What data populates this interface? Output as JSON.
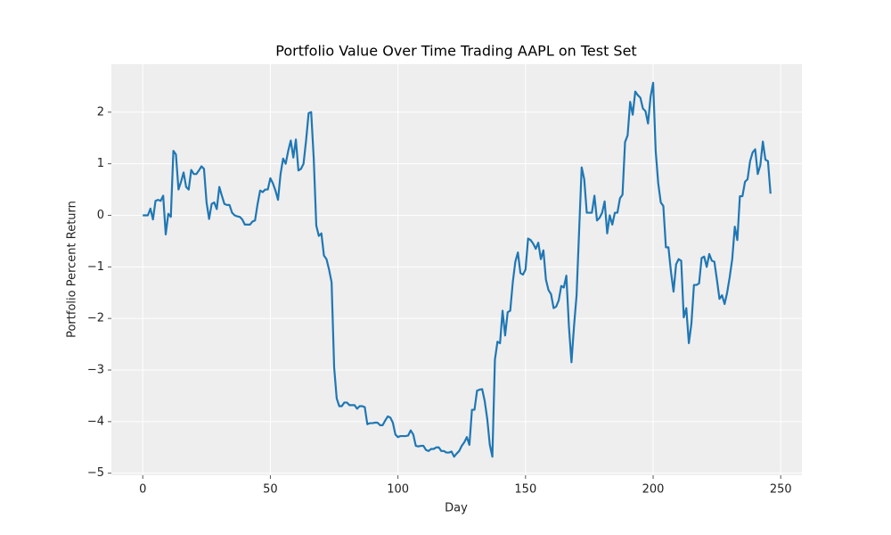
{
  "chart_data": {
    "type": "line",
    "title": "Portfolio Value Over Time Trading AAPL on Test Set",
    "x_label": "Day",
    "y_label": "Portfolio Percent Return",
    "color": "#1f77b4",
    "grid": true,
    "xlim": [
      -12.3,
      258.3
    ],
    "ylim": [
      -5.04,
      2.93
    ],
    "xticks": [
      0,
      50,
      100,
      150,
      200,
      250
    ],
    "yticks": [
      {
        "value": -5,
        "label": "−5"
      },
      {
        "value": -4,
        "label": "−4"
      },
      {
        "value": -3,
        "label": "−3"
      },
      {
        "value": -2,
        "label": "−2"
      },
      {
        "value": -1,
        "label": "−1"
      },
      0,
      1,
      2
    ],
    "x": [
      0,
      1,
      2,
      3,
      4,
      5,
      6,
      7,
      8,
      9,
      10,
      11,
      12,
      13,
      14,
      15,
      16,
      17,
      18,
      19,
      20,
      21,
      22,
      23,
      24,
      25,
      26,
      27,
      28,
      29,
      30,
      31,
      32,
      33,
      34,
      35,
      36,
      37,
      38,
      39,
      40,
      41,
      42,
      43,
      44,
      45,
      46,
      47,
      48,
      49,
      50,
      51,
      52,
      53,
      54,
      55,
      56,
      57,
      58,
      59,
      60,
      61,
      62,
      63,
      64,
      65,
      66,
      67,
      68,
      69,
      70,
      71,
      72,
      73,
      74,
      75,
      76,
      77,
      78,
      79,
      80,
      81,
      82,
      83,
      84,
      85,
      86,
      87,
      88,
      89,
      90,
      91,
      92,
      93,
      94,
      95,
      96,
      97,
      98,
      99,
      100,
      101,
      102,
      103,
      104,
      105,
      106,
      107,
      108,
      109,
      110,
      111,
      112,
      113,
      114,
      115,
      116,
      117,
      118,
      119,
      120,
      121,
      122,
      123,
      124,
      125,
      126,
      127,
      128,
      129,
      130,
      131,
      132,
      133,
      134,
      135,
      136,
      137,
      138,
      139,
      140,
      141,
      142,
      143,
      144,
      145,
      146,
      147,
      148,
      149,
      150,
      151,
      152,
      153,
      154,
      155,
      156,
      157,
      158,
      159,
      160,
      161,
      162,
      163,
      164,
      165,
      166,
      167,
      168,
      169,
      170,
      171,
      172,
      173,
      174,
      175,
      176,
      177,
      178,
      179,
      180,
      181,
      182,
      183,
      184,
      185,
      186,
      187,
      188,
      189,
      190,
      191,
      192,
      193,
      194,
      195,
      196,
      197,
      198,
      199,
      200,
      201,
      202,
      203,
      204,
      205,
      206,
      207,
      208,
      209,
      210,
      211,
      212,
      213,
      214,
      215,
      216,
      217,
      218,
      219,
      220,
      221,
      222,
      223,
      224,
      225,
      226,
      227,
      228,
      229,
      230,
      231,
      232,
      233,
      234,
      235,
      236,
      237,
      238,
      239,
      240,
      241,
      242,
      243,
      244,
      245,
      246
    ],
    "values": [
      0,
      0,
      0,
      0.13,
      -0.08,
      0.28,
      0.3,
      0.28,
      0.38,
      -0.37,
      0.03,
      -0.03,
      1.25,
      1.18,
      0.5,
      0.65,
      0.83,
      0.55,
      0.5,
      0.88,
      0.8,
      0.8,
      0.87,
      0.95,
      0.9,
      0.25,
      -0.07,
      0.22,
      0.25,
      0.12,
      0.55,
      0.38,
      0.22,
      0.2,
      0.2,
      0.05,
      0,
      -0.02,
      -0.03,
      -0.08,
      -0.18,
      -0.18,
      -0.18,
      -0.12,
      -0.1,
      0.22,
      0.48,
      0.45,
      0.5,
      0.5,
      0.72,
      0.62,
      0.48,
      0.3,
      0.8,
      1.1,
      1,
      1.25,
      1.45,
      1.12,
      1.47,
      0.87,
      0.9,
      1,
      1.45,
      1.98,
      2,
      1.1,
      -0.2,
      -0.4,
      -0.35,
      -0.78,
      -0.85,
      -1.05,
      -1.3,
      -2.95,
      -3.55,
      -3.7,
      -3.7,
      -3.63,
      -3.63,
      -3.68,
      -3.68,
      -3.68,
      -3.75,
      -3.7,
      -3.7,
      -3.72,
      -4.05,
      -4.03,
      -4.03,
      -4.02,
      -4.02,
      -4.07,
      -4.07,
      -3.98,
      -3.9,
      -3.92,
      -4.02,
      -4.25,
      -4.3,
      -4.28,
      -4.28,
      -4.28,
      -4.27,
      -4.17,
      -4.25,
      -4.47,
      -4.48,
      -4.47,
      -4.47,
      -4.55,
      -4.57,
      -4.53,
      -4.53,
      -4.5,
      -4.5,
      -4.57,
      -4.57,
      -4.6,
      -4.6,
      -4.58,
      -4.68,
      -4.62,
      -4.57,
      -4.47,
      -4.4,
      -4.3,
      -4.45,
      -3.77,
      -3.77,
      -3.4,
      -3.38,
      -3.37,
      -3.6,
      -3.95,
      -4.45,
      -4.68,
      -2.8,
      -2.45,
      -2.48,
      -1.85,
      -2.33,
      -1.88,
      -1.85,
      -1.3,
      -0.9,
      -0.72,
      -1.12,
      -1.15,
      -1.05,
      -0.45,
      -0.48,
      -0.55,
      -0.65,
      -0.53,
      -0.85,
      -0.68,
      -1.25,
      -1.45,
      -1.53,
      -1.8,
      -1.77,
      -1.65,
      -1.37,
      -1.4,
      -1.17,
      -2.15,
      -2.85,
      -2.15,
      -1.55,
      -0.3,
      0.93,
      0.7,
      0.05,
      0.05,
      0.05,
      0.38,
      -0.1,
      -0.05,
      0.05,
      0.27,
      -0.35,
      0,
      -0.18,
      0.05,
      0.05,
      0.33,
      0.4,
      1.42,
      1.55,
      2.2,
      1.95,
      2.4,
      2.33,
      2.28,
      2.07,
      2.02,
      1.78,
      2.3,
      2.57,
      1.25,
      0.62,
      0.25,
      0.18,
      -0.62,
      -0.62,
      -1.1,
      -1.48,
      -0.95,
      -0.85,
      -0.88,
      -1.98,
      -1.8,
      -2.48,
      -2.1,
      -1.35,
      -1.35,
      -1.32,
      -0.83,
      -0.8,
      -1,
      -0.75,
      -0.88,
      -0.9,
      -1.25,
      -1.62,
      -1.55,
      -1.72,
      -1.5,
      -1.2,
      -0.85,
      -0.22,
      -0.48,
      0.37,
      0.37,
      0.65,
      0.7,
      1.05,
      1.22,
      1.28,
      0.8,
      0.97,
      1.43,
      1.08,
      1.05,
      0.42
    ]
  }
}
